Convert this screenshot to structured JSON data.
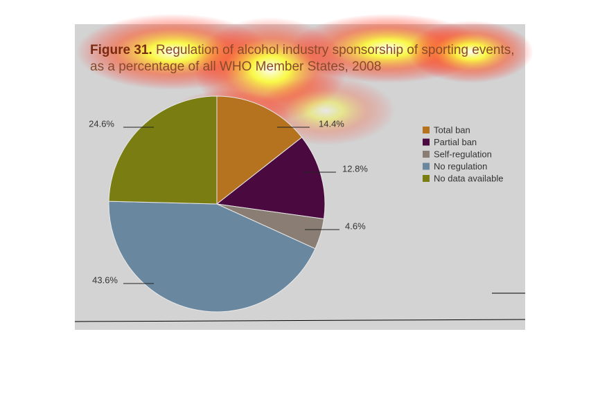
{
  "chart_data": {
    "type": "pie",
    "figure_label": "Figure 31.",
    "title_line1": "Regulation of alcohol industry sponsorship of sporting events,",
    "title_line2": "as a percentage of all WHO Member States, 2008",
    "categories": [
      "Total ban",
      "Partial ban",
      "Self-regulation",
      "No regulation",
      "No data available"
    ],
    "values": [
      14.4,
      12.8,
      4.6,
      43.6,
      24.6
    ],
    "value_labels": [
      "14.4%",
      "12.8%",
      "4.6%",
      "43.6%",
      "24.6%"
    ],
    "colors": [
      "#b5721f",
      "#4a0a40",
      "#8a7e74",
      "#6a87a0",
      "#7a7d12"
    ]
  }
}
